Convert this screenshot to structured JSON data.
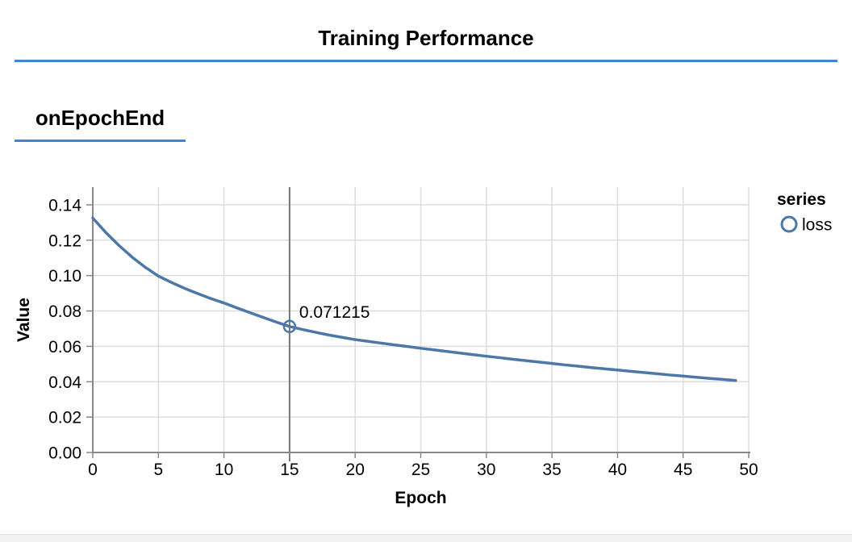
{
  "header": {
    "title": "Training Performance"
  },
  "section": {
    "label": "onEpochEnd"
  },
  "colors": {
    "accent_blue": "#4282dd",
    "series_line": "#4c78a8",
    "grid": "#dddddd",
    "axis": "#888888",
    "crosshair": "#767676",
    "text": "#000000",
    "page_edge_bg": "#f1f1ef",
    "page_edge_border": "#e2e2e0"
  },
  "chart_data": {
    "type": "line",
    "title": "",
    "xlabel": "Epoch",
    "ylabel": "Value",
    "legend_title": "series",
    "legend_position": "top-right",
    "grid": true,
    "xlim": [
      0,
      50
    ],
    "ylim": [
      0,
      0.15
    ],
    "x_ticks": [
      "0",
      "5",
      "10",
      "15",
      "20",
      "25",
      "30",
      "35",
      "40",
      "45",
      "50"
    ],
    "y_ticks": [
      "0.00",
      "0.02",
      "0.04",
      "0.06",
      "0.08",
      "0.10",
      "0.12",
      "0.14"
    ],
    "series": [
      {
        "name": "loss",
        "x_is_epoch_index": true,
        "values": [
          0.1325,
          0.1243,
          0.117,
          0.1104,
          0.1047,
          0.0997,
          0.0961,
          0.0928,
          0.0898,
          0.087,
          0.0845,
          0.0817,
          0.079,
          0.0763,
          0.0737,
          0.071215,
          0.0695,
          0.0679,
          0.0664,
          0.0651,
          0.0638,
          0.0628,
          0.0618,
          0.0608,
          0.0599,
          0.0589,
          0.058,
          0.0571,
          0.0562,
          0.0553,
          0.0544,
          0.0536,
          0.0527,
          0.0519,
          0.0511,
          0.0503,
          0.0495,
          0.0488,
          0.048,
          0.0473,
          0.0466,
          0.0459,
          0.0452,
          0.0445,
          0.0438,
          0.0432,
          0.0425,
          0.0419,
          0.0413,
          0.0407
        ]
      }
    ],
    "crosshair": {
      "epoch": 15,
      "value": 0.071215,
      "tooltip_label": "0.071215"
    }
  }
}
